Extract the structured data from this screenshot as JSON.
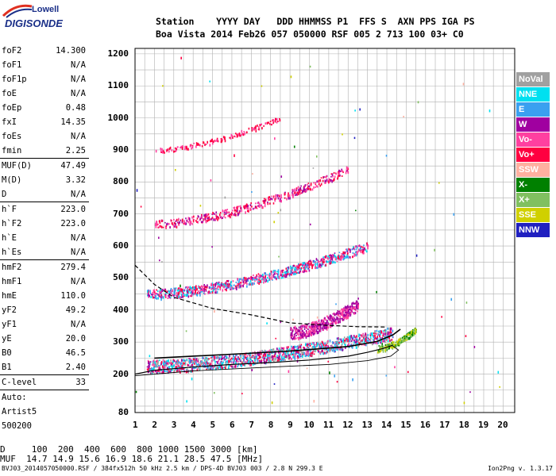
{
  "logo": {
    "top": "Lowell",
    "bottom": "DIGISONDE"
  },
  "header": {
    "line1": "Station    YYYY DAY   DDD HHMMSS P1  FFS S  AXN PPS IGA PS",
    "line2": "Boa Vista 2014 Feb26 057 050000 RSF 005 2 713 100 03+ C0"
  },
  "params_top": [
    {
      "name": "foF2",
      "value": "14.300"
    },
    {
      "name": "foF1",
      "value": "N/A"
    },
    {
      "name": "foF1p",
      "value": "N/A"
    },
    {
      "name": "foE",
      "value": "N/A"
    },
    {
      "name": "foEp",
      "value": "0.48"
    },
    {
      "name": "fxI",
      "value": "14.35"
    },
    {
      "name": "foEs",
      "value": "N/A"
    },
    {
      "name": "fmin",
      "value": "2.25"
    }
  ],
  "params_muf": [
    {
      "name": "MUF(D)",
      "value": "47.49"
    },
    {
      "name": "M(D)",
      "value": "3.32"
    },
    {
      "name": "D",
      "value": "N/A"
    }
  ],
  "params_h": [
    {
      "name": "h`F",
      "value": "223.0"
    },
    {
      "name": "h`F2",
      "value": "223.0"
    },
    {
      "name": "h`E",
      "value": "N/A"
    },
    {
      "name": "h`Es",
      "value": "N/A"
    }
  ],
  "params_hm": [
    {
      "name": "hmF2",
      "value": "279.4"
    },
    {
      "name": "hmF1",
      "value": "N/A"
    },
    {
      "name": "hmE",
      "value": "110.0"
    },
    {
      "name": "yF2",
      "value": "49.2"
    },
    {
      "name": "yF1",
      "value": "N/A"
    },
    {
      "name": "yE",
      "value": "20.0"
    },
    {
      "name": "B0",
      "value": "46.5"
    },
    {
      "name": "B1",
      "value": "2.40"
    }
  ],
  "params_clevel": {
    "name": "C-level",
    "value": "33"
  },
  "auto": [
    "Auto:",
    "Artist5",
    "500200"
  ],
  "legend": [
    {
      "label": "NoVal",
      "bg": "#a0a0a0"
    },
    {
      "label": "NNE",
      "bg": "#00e0f0"
    },
    {
      "label": "E",
      "bg": "#3aa0f0"
    },
    {
      "label": "W",
      "bg": "#a000a0"
    },
    {
      "label": "Vo-",
      "bg": "#ff40a0"
    },
    {
      "label": "Vo+",
      "bg": "#ff0040"
    },
    {
      "label": "SSW",
      "bg": "#ffb0a0"
    },
    {
      "label": "X-",
      "bg": "#008000"
    },
    {
      "label": "X+",
      "bg": "#80c060"
    },
    {
      "label": "SSE",
      "bg": "#d0d000"
    },
    {
      "label": "NNW",
      "bg": "#2020c0"
    }
  ],
  "freq_ticks": [
    "1",
    "2",
    "3",
    "4",
    "5",
    "6",
    "7",
    "8",
    "9",
    "10",
    "11",
    "12",
    "13",
    "14",
    "15",
    "16",
    "17",
    "18",
    "19",
    "20"
  ],
  "height_ticks": [
    "1200",
    "1100",
    "1000",
    "900",
    "800",
    "700",
    "600",
    "500",
    "400",
    "300",
    "200",
    "80"
  ],
  "bottom": {
    "line1": "D     100  200  400  600  800 1000 1500 3000 [km]",
    "line2": "MUF  14.7 14.9 15.6 16.9 18.6 21.1 28.5 47.5 [MHz]"
  },
  "footer": "BVJ03_2014057050000.RSF / 384fx512h 50 kHz 2.5 km / DPS-4D BVJ03 003 / 2.8 N 299.3 E",
  "version": "Ion2Png v. 1.3.17",
  "colors": {
    "text": "#000000",
    "grid": "#9a9a9a",
    "logo": "#1a2f88"
  }
}
